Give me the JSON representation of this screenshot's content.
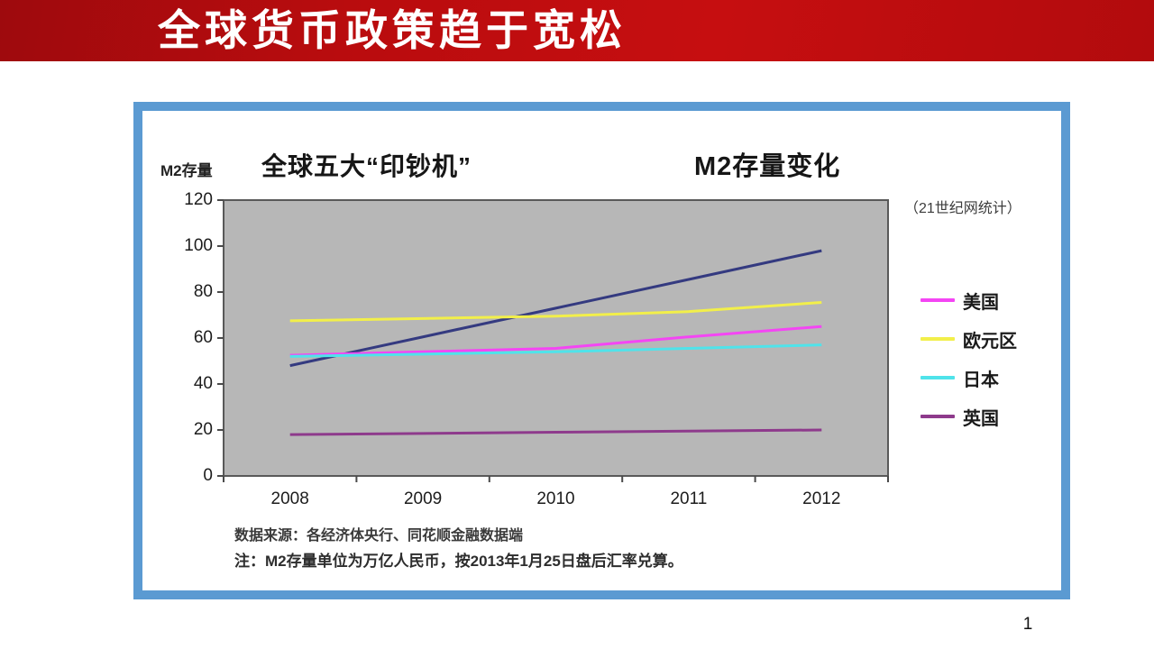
{
  "slide": {
    "title": "全球货币政策趋于宽松",
    "page_number": "1"
  },
  "chart_panel": {
    "y_axis_label": "M2存量",
    "title_left": "全球五大“印钞机”",
    "title_right": "M2存量变化",
    "stat_note": "（21世纪网统计）",
    "footnote_source": "数据来源：各经济体央行、同花顺金融数据端",
    "footnote_note": "注：M2存量单位为万亿人民币，按2013年1月25日盘后汇率兑算。",
    "frame_color": "#5b9ad2",
    "plot_background": "#b7b7b7",
    "axis_color": "#4a4a4a"
  },
  "chart_data": {
    "type": "line",
    "title": "全球五大“印钞机” M2存量变化",
    "ylabel": "M2存量",
    "categories": [
      "2008",
      "2009",
      "2010",
      "2011",
      "2012"
    ],
    "ylim": [
      0,
      120
    ],
    "y_ticks": [
      0,
      20,
      40,
      60,
      80,
      100,
      120
    ],
    "grid": false,
    "legend_position": "right",
    "plot_background": "#b7b7b7",
    "series": [
      {
        "name": "",
        "in_legend": false,
        "color": "#343a80",
        "values": [
          48,
          60.5,
          73,
          85.5,
          98
        ]
      },
      {
        "name": "美国",
        "in_legend": true,
        "color": "#f445f4",
        "values": [
          52.5,
          54,
          55.5,
          60.5,
          65
        ]
      },
      {
        "name": "欧元区",
        "in_legend": true,
        "color": "#f2ef4a",
        "values": [
          67.5,
          68.5,
          69.5,
          71.5,
          75.5
        ]
      },
      {
        "name": "日本",
        "in_legend": true,
        "color": "#4fe3ea",
        "values": [
          52,
          53,
          54,
          55.5,
          57
        ]
      },
      {
        "name": "英国",
        "in_legend": true,
        "color": "#8e3a8c",
        "values": [
          18,
          18.5,
          19,
          19.5,
          20
        ]
      }
    ]
  }
}
